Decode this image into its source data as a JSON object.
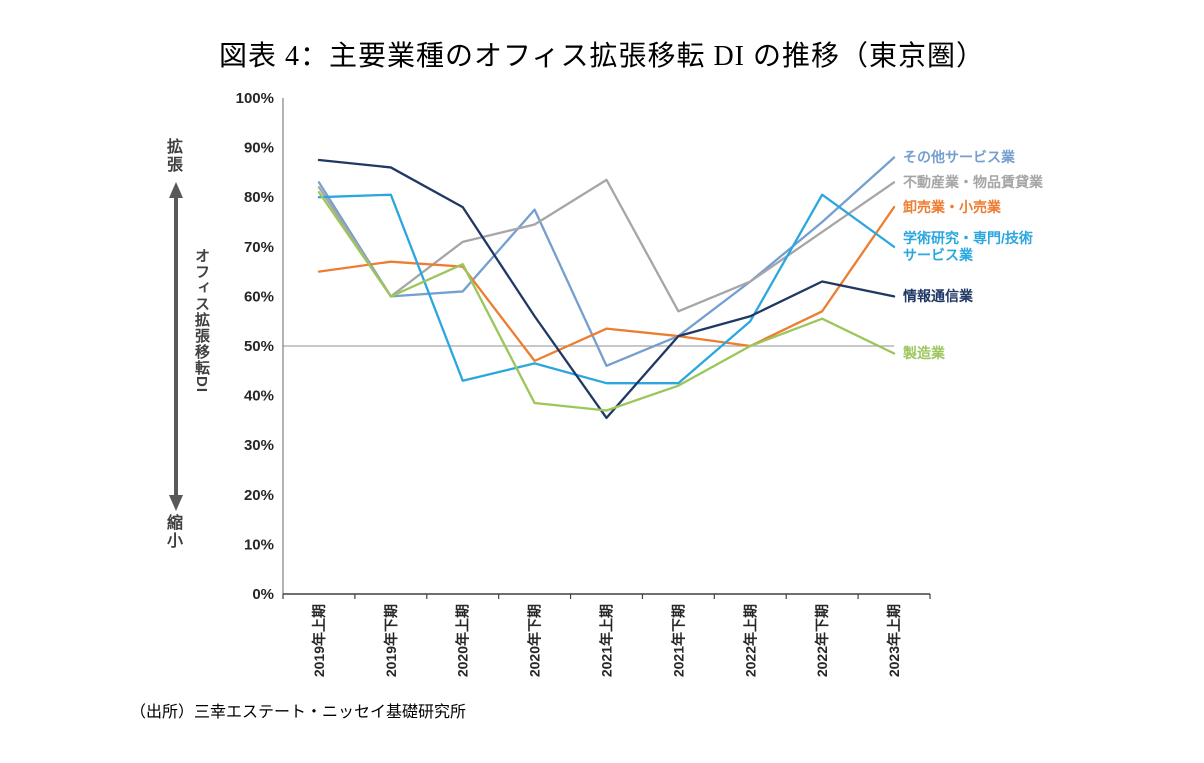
{
  "title": "図表 4：主要業種のオフィス拡張移転 DI の推移（東京圏）",
  "source": "（出所）三幸エステート・ニッセイ基礎研究所",
  "axis_annotation": {
    "top": "拡張",
    "bottom": "縮小",
    "ylabel": "オフィス拡張移転DI"
  },
  "chart_data": {
    "type": "line",
    "title": "図表 4：主要業種のオフィス拡張移転 DI の推移（東京圏）",
    "categories": [
      "2019年上期",
      "2019年下期",
      "2020年上期",
      "2020年下期",
      "2021年上期",
      "2021年下期",
      "2022年上期",
      "2022年下期",
      "2023年上期"
    ],
    "xlabel": "",
    "ylabel": "オフィス拡張移転DI",
    "ylim": [
      0,
      100
    ],
    "ytick_step": 10,
    "ytick_suffix": "%",
    "grid": false,
    "reference_line": 50,
    "reference_color": "#A6A6A6",
    "legend_position": "right",
    "series": [
      {
        "key": "other-services",
        "name": "その他サービス業",
        "label_lines": [
          "その他サービス業"
        ],
        "color": "#759FCE",
        "values": [
          83,
          60,
          61,
          77.5,
          46,
          52,
          63,
          75,
          88
        ]
      },
      {
        "key": "real-estate-goods-leasing",
        "name": "不動産業・物品賃貸業",
        "label_lines": [
          "不動産業・物品賃貸業"
        ],
        "color": "#A6A6A6",
        "values": [
          82,
          60,
          71,
          74.5,
          83.5,
          57,
          63,
          73,
          83
        ]
      },
      {
        "key": "wholesale-retail",
        "name": "卸売業・小売業",
        "label_lines": [
          "卸売業・小売業"
        ],
        "color": "#ED7D31",
        "values": [
          65,
          67,
          66,
          47,
          53.5,
          52,
          50,
          57,
          78
        ]
      },
      {
        "key": "academic-professional-technical",
        "name": "学術研究・専門/技術サービス業",
        "label_lines": [
          "学術研究・専門/技術",
          "サービス業"
        ],
        "color": "#2BA7DF",
        "values": [
          80,
          80.5,
          43,
          46.5,
          42.5,
          42.5,
          55,
          80.5,
          70
        ]
      },
      {
        "key": "information-communications",
        "name": "情報通信業",
        "label_lines": [
          "情報通信業"
        ],
        "color": "#1F3864",
        "values": [
          87.5,
          86,
          78,
          56,
          35.5,
          52,
          56,
          63,
          60
        ]
      },
      {
        "key": "manufacturing",
        "name": "製造業",
        "label_lines": [
          "製造業"
        ],
        "color": "#9CC65C",
        "values": [
          81,
          60,
          66.5,
          38.5,
          37,
          42,
          50,
          55.5,
          48.5
        ]
      }
    ]
  }
}
